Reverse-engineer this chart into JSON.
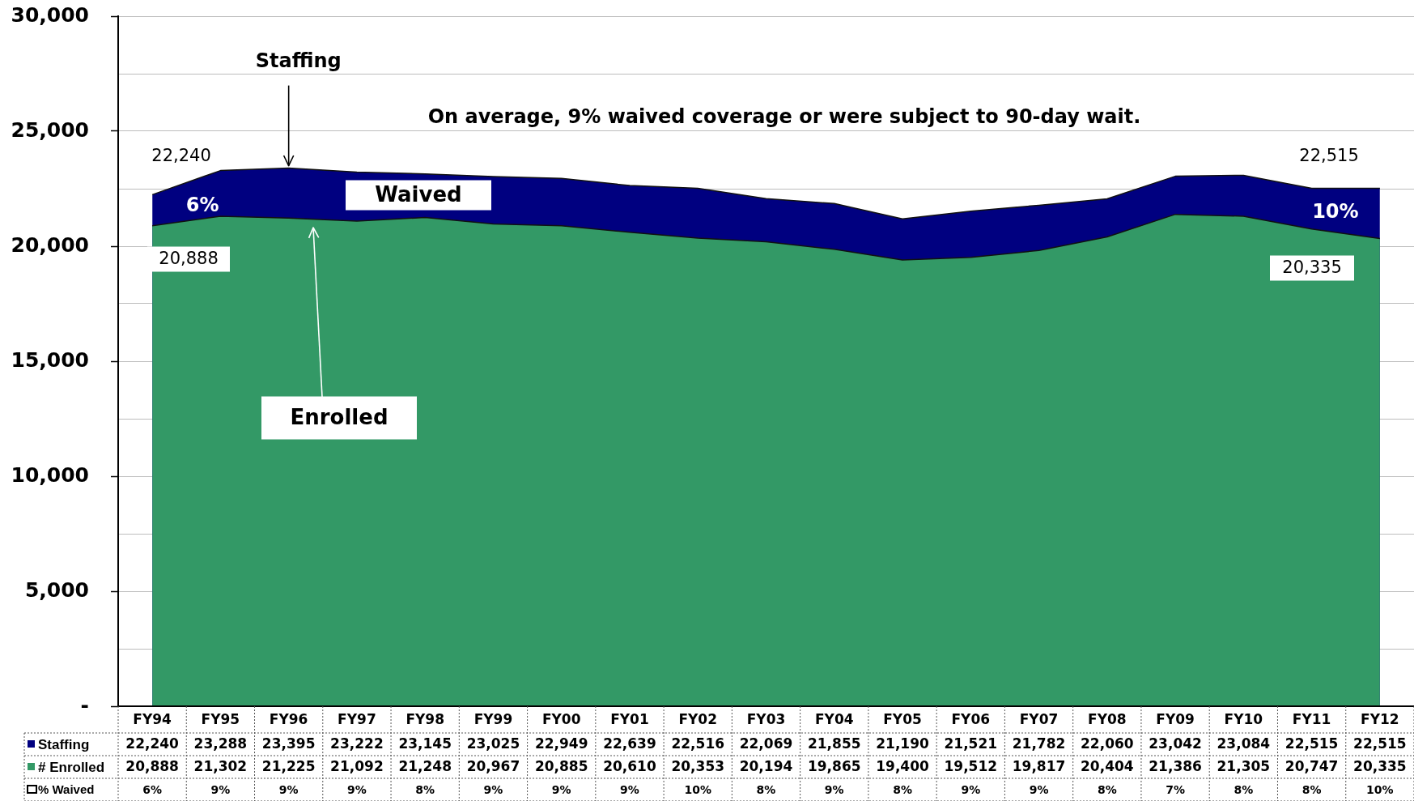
{
  "chart_data": {
    "type": "area",
    "categories": [
      "FY94",
      "FY95",
      "FY96",
      "FY97",
      "FY98",
      "FY99",
      "FY00",
      "FY01",
      "FY02",
      "FY03",
      "FY04",
      "FY05",
      "FY06",
      "FY07",
      "FY08",
      "FY09",
      "FY10",
      "FY11",
      "FY12"
    ],
    "series": [
      {
        "name": "Staffing",
        "color": "#000080",
        "values": [
          22240,
          23288,
          23395,
          23222,
          23145,
          23025,
          22949,
          22639,
          22516,
          22069,
          21855,
          21190,
          21521,
          21782,
          22060,
          23042,
          23084,
          22515,
          22515
        ],
        "value_labels": [
          "22,240",
          "23,288",
          "23,395",
          "23,222",
          "23,145",
          "23,025",
          "22,949",
          "22,639",
          "22,516",
          "22,069",
          "21,855",
          "21,190",
          "21,521",
          "21,782",
          "22,060",
          "23,042",
          "23,084",
          "22,515",
          "22,515"
        ]
      },
      {
        "name": "# Enrolled",
        "color": "#339966",
        "values": [
          20888,
          21302,
          21225,
          21092,
          21248,
          20967,
          20885,
          20610,
          20353,
          20194,
          19865,
          19400,
          19512,
          19817,
          20404,
          21386,
          21305,
          20747,
          20335
        ],
        "value_labels": [
          "20,888",
          "21,302",
          "21,225",
          "21,092",
          "21,248",
          "20,967",
          "20,885",
          "20,610",
          "20,353",
          "20,194",
          "19,865",
          "19,400",
          "19,512",
          "19,817",
          "20,404",
          "21,386",
          "21,305",
          "20,747",
          "20,335"
        ]
      },
      {
        "name": "% Waived",
        "type": "other",
        "values": [
          null,
          null,
          null,
          null,
          null,
          null,
          null,
          null,
          null,
          null,
          null,
          null,
          null,
          null,
          null,
          null,
          null,
          null,
          null
        ],
        "value_labels": [
          "6%",
          "9%",
          "9%",
          "9%",
          "8%",
          "9%",
          "9%",
          "9%",
          "10%",
          "8%",
          "9%",
          "8%",
          "9%",
          "9%",
          "8%",
          "7%",
          "8%",
          "8%",
          "10%"
        ]
      }
    ],
    "ylim": [
      0,
      30000
    ],
    "yticks": [
      {
        "value": 0,
        "label": "-"
      },
      {
        "value": 2500,
        "label": null
      },
      {
        "value": 5000,
        "label": "5,000"
      },
      {
        "value": 7500,
        "label": null
      },
      {
        "value": 10000,
        "label": "10,000"
      },
      {
        "value": 12500,
        "label": null
      },
      {
        "value": 15000,
        "label": "15,000"
      },
      {
        "value": 17500,
        "label": null
      },
      {
        "value": 20000,
        "label": "20,000"
      },
      {
        "value": 22500,
        "label": null
      },
      {
        "value": 25000,
        "label": "25,000"
      },
      {
        "value": 27500,
        "label": null
      },
      {
        "value": 30000,
        "label": "30,000"
      }
    ],
    "grid": "y",
    "legend": "bottom",
    "annotations": [
      {
        "text": "Staffing",
        "x": "FY96",
        "y": 23395
      },
      "On average, 9% waived coverage or were subject to 90-day wait.",
      "22,240",
      "22,515",
      {
        "text": "6%",
        "x": "FY94",
        "y": 21800
      },
      "Waived",
      {
        "text": "10%",
        "x": "FY12",
        "y": 21500
      },
      "20,888",
      "20,335",
      "Enrolled"
    ]
  }
}
